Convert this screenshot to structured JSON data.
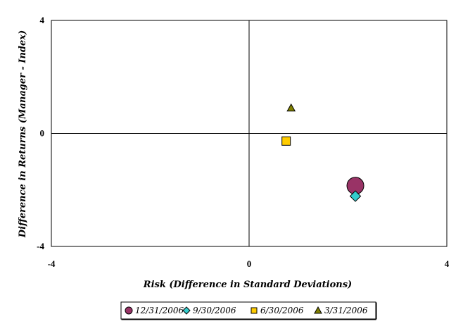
{
  "chart_data": {
    "type": "scatter",
    "xlabel": "Risk (Difference in Standard Deviations)",
    "ylabel": "Difference in Returns (Manager - Index)",
    "xlim": [
      -4,
      4
    ],
    "ylim": [
      -4,
      4
    ],
    "x_ticks": [
      "-4",
      "0",
      "4"
    ],
    "y_ticks": [
      "4",
      "0",
      "-4"
    ],
    "grid": false,
    "legend_position": "bottom",
    "series": [
      {
        "name": "12/31/2006",
        "marker": "circle",
        "marker_size": "large",
        "color": "#993366",
        "x": 2.15,
        "y": -1.85
      },
      {
        "name": "9/30/2006",
        "marker": "diamond",
        "marker_size": "medium",
        "color": "#33CCCC",
        "x": 2.15,
        "y": -2.22
      },
      {
        "name": "6/30/2006",
        "marker": "square",
        "marker_size": "medium",
        "color": "#FFCC00",
        "x": 0.75,
        "y": -0.27
      },
      {
        "name": "3/31/2006",
        "marker": "triangle",
        "marker_size": "small",
        "color": "#808000",
        "x": 0.85,
        "y": 0.9
      }
    ]
  }
}
